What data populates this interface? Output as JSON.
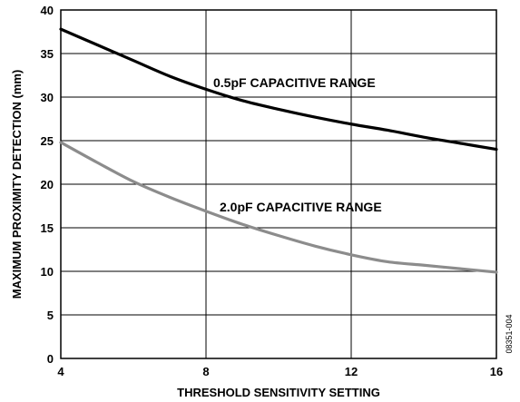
{
  "chart_data": {
    "type": "line",
    "title": "",
    "xlabel": "THRESHOLD SENSITIVITY SETTING",
    "ylabel": "MAXIMUM PROXIMITY DETECTION (mm)",
    "xlim": [
      4,
      16
    ],
    "ylim": [
      0,
      40
    ],
    "xticks": [
      4,
      8,
      12,
      16
    ],
    "yticks": [
      0,
      5,
      10,
      15,
      20,
      25,
      30,
      35,
      40
    ],
    "grid": true,
    "series": [
      {
        "name": "0.5pF CAPACITIVE RANGE",
        "color": "#000000",
        "x": [
          4,
          5,
          6,
          7,
          8,
          9,
          10,
          11,
          12,
          13,
          14,
          15,
          16
        ],
        "y": [
          37.8,
          36.0,
          34.2,
          32.4,
          30.9,
          29.6,
          28.6,
          27.7,
          26.9,
          26.2,
          25.4,
          24.7,
          24.0
        ]
      },
      {
        "name": "2.0pF CAPACITIVE RANGE",
        "color": "#8c8c8c",
        "x": [
          4,
          5,
          6,
          7,
          8,
          9,
          10,
          11,
          12,
          13,
          14,
          15,
          16
        ],
        "y": [
          24.8,
          22.5,
          20.3,
          18.5,
          16.9,
          15.4,
          14.1,
          12.9,
          11.9,
          11.1,
          10.7,
          10.3,
          9.9
        ]
      }
    ],
    "annotations": [
      "0.5pF CAPACITIVE RANGE",
      "2.0pF CAPACITIVE RANGE"
    ],
    "figure_id": "08351-004"
  }
}
